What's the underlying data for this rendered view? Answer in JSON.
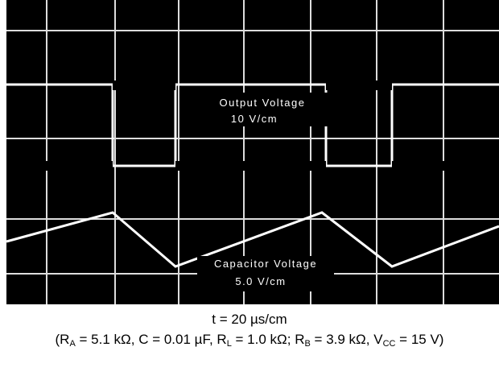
{
  "screen": {
    "output_label": "Output Voltage",
    "output_scale": "10 V/cm",
    "capacitor_label": "Capacitor Voltage",
    "capacitor_scale": "5.0 V/cm"
  },
  "caption": {
    "timebase": "t = 20 µs/cm",
    "conditions": [
      "(R",
      "A",
      " = 5.1 kΩ, C = 0.01 µF, R",
      "L",
      " = 1.0 kΩ; R",
      "B",
      " = 3.9 kΩ, V",
      "CC",
      " = 15 V)"
    ]
  }
}
